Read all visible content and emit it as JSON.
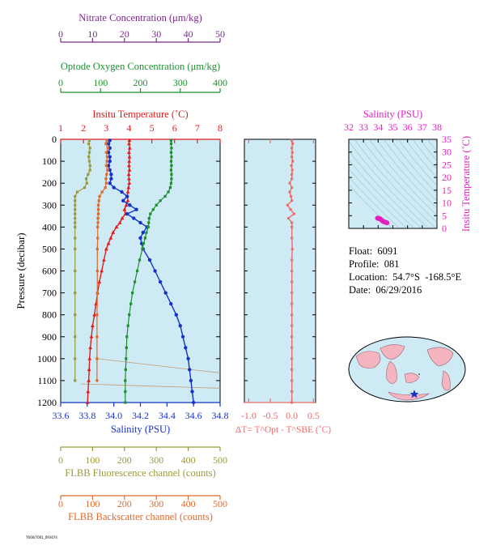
{
  "info": {
    "float": "Float:  6091",
    "profile": "Profile:  081",
    "location": "Location:  54.7°S  -168.5°E",
    "date": "Date:  06/29/2016"
  },
  "footer": "7600/7001_093674",
  "colors": {
    "temperature": "#e41a1c",
    "salinity": "#1533c8",
    "oxygen": "#1e8f2e",
    "nitrate": "#7a2a8a",
    "fluorescence": "#9a9a3a",
    "backscatter": "#e0692a",
    "delta_t": "#f06a6a",
    "ts_magenta": "#e020c0",
    "plot_bg": "#cdeaf5"
  },
  "chart_data": [
    {
      "type": "line",
      "name": "main-profile",
      "ylabel": "Pressure (decibar)",
      "y_ticks": [
        "0",
        "100",
        "200",
        "300",
        "400",
        "500",
        "600",
        "700",
        "800",
        "900",
        "1000",
        "1100",
        "1200"
      ],
      "ylim": [
        1200,
        0
      ],
      "axes": {
        "nitrate": {
          "title": "Nitrate Concentration (μm/kg)",
          "ticks": [
            "0",
            "10",
            "20",
            "30",
            "40",
            "50"
          ],
          "range": [
            0,
            50
          ]
        },
        "oxygen": {
          "title": "Optode Oxygen Concentration (μm/kg)",
          "ticks": [
            "0",
            "100",
            "200",
            "300",
            "400"
          ],
          "range": [
            0,
            400
          ]
        },
        "temperature": {
          "title": "Insitu Temperature (˚C)",
          "ticks": [
            "1",
            "2",
            "3",
            "4",
            "5",
            "6",
            "7",
            "8"
          ],
          "range": [
            1,
            8
          ]
        },
        "salinity": {
          "title": "Salinity (PSU)",
          "ticks": [
            "33.6",
            "33.8",
            "34.0",
            "34.2",
            "34.4",
            "34.6",
            "34.8"
          ],
          "range": [
            33.6,
            34.8
          ]
        },
        "fluorescence": {
          "title": "FLBB Fluorescence channel (counts)",
          "ticks": [
            "0",
            "100",
            "200",
            "300",
            "400",
            "500"
          ],
          "range": [
            0,
            500
          ]
        },
        "backscatter": {
          "title": "FLBB Backscatter channel (counts)",
          "ticks": [
            "0",
            "100",
            "200",
            "300",
            "400",
            "500"
          ],
          "range": [
            0,
            500
          ]
        }
      },
      "series": [
        {
          "key": "temperature",
          "p": [
            5,
            20,
            40,
            60,
            80,
            100,
            120,
            140,
            160,
            180,
            200,
            220,
            240,
            260,
            280,
            300,
            320,
            340,
            360,
            380,
            400,
            425,
            450,
            475,
            500,
            550,
            600,
            650,
            700,
            750,
            800,
            850,
            900,
            950,
            1000,
            1050,
            1100,
            1150,
            1200
          ],
          "v": [
            4.02,
            4.0,
            4.03,
            4.0,
            4.02,
            4.01,
            4.0,
            4.02,
            3.99,
            4.0,
            4.01,
            3.98,
            3.95,
            3.92,
            3.95,
            3.88,
            3.8,
            3.84,
            3.7,
            3.6,
            3.45,
            3.3,
            3.2,
            3.1,
            3.0,
            2.9,
            2.8,
            2.7,
            2.62,
            2.55,
            2.48,
            2.4,
            2.35,
            2.3,
            2.27,
            2.25,
            2.23,
            2.2,
            2.18
          ]
        },
        {
          "key": "salinity",
          "p": [
            5,
            20,
            40,
            60,
            80,
            100,
            120,
            140,
            160,
            180,
            200,
            220,
            240,
            260,
            280,
            300,
            320,
            340,
            360,
            380,
            400,
            425,
            450,
            475,
            500,
            550,
            600,
            650,
            700,
            750,
            800,
            850,
            900,
            950,
            1000,
            1050,
            1100,
            1150,
            1200
          ],
          "v": [
            33.97,
            33.96,
            33.97,
            33.96,
            33.97,
            33.97,
            33.96,
            33.97,
            33.98,
            33.98,
            33.97,
            34.0,
            34.06,
            34.1,
            34.07,
            34.12,
            34.17,
            34.1,
            34.15,
            34.2,
            34.25,
            34.22,
            34.2,
            34.21,
            34.22,
            34.27,
            34.31,
            34.35,
            34.39,
            34.43,
            34.47,
            34.5,
            34.52,
            34.54,
            34.56,
            34.57,
            34.58,
            34.59,
            34.6
          ]
        },
        {
          "key": "oxygen",
          "p": [
            5,
            20,
            40,
            60,
            80,
            100,
            120,
            140,
            160,
            180,
            200,
            220,
            240,
            260,
            280,
            300,
            320,
            340,
            360,
            380,
            400,
            425,
            450,
            475,
            500,
            550,
            600,
            650,
            700,
            750,
            800,
            850,
            900,
            950,
            1000,
            1050,
            1100,
            1150,
            1200
          ],
          "v": [
            277,
            277,
            278,
            277,
            278,
            277,
            278,
            277,
            278,
            278,
            277,
            275,
            270,
            262,
            250,
            240,
            232,
            225,
            222,
            221,
            220,
            215,
            212,
            208,
            205,
            198,
            192,
            186,
            180,
            176,
            172,
            169,
            166,
            165,
            164,
            163,
            162,
            162,
            162
          ]
        },
        {
          "key": "fluorescence",
          "p": [
            5,
            20,
            40,
            60,
            80,
            100,
            120,
            140,
            160,
            180,
            200,
            220,
            240,
            260,
            280,
            300,
            320,
            340,
            360,
            380,
            400,
            450,
            500,
            600,
            700,
            800,
            900,
            1000,
            1100
          ],
          "v": [
            90,
            88,
            92,
            90,
            88,
            90,
            92,
            92,
            86,
            80,
            82,
            75,
            52,
            45,
            45,
            45,
            45,
            45,
            45,
            45,
            45,
            45,
            45,
            45,
            45,
            45,
            45,
            45,
            45
          ]
        },
        {
          "key": "backscatter",
          "p": [
            5,
            20,
            40,
            60,
            80,
            100,
            120,
            140,
            160,
            180,
            200,
            220,
            240,
            260,
            280,
            300,
            320,
            340,
            360,
            380,
            400,
            450,
            500,
            600,
            700,
            800,
            900,
            1000,
            1100
          ],
          "v": [
            145,
            142,
            148,
            143,
            146,
            145,
            143,
            147,
            144,
            142,
            143,
            140,
            130,
            122,
            120,
            118,
            118,
            118,
            117,
            117,
            116,
            116,
            115,
            115,
            115,
            114,
            114,
            114,
            114
          ]
        }
      ]
    },
    {
      "type": "scatter",
      "name": "delta-t",
      "xlabel": "ΔT= T^Opt - T^SBE (˚C)",
      "x_ticks": [
        "-1.0",
        "-0.5",
        "0.0",
        "0.5"
      ],
      "xlim": [
        -1.1,
        0.55
      ],
      "ylim": [
        1200,
        0
      ],
      "p": [
        5,
        20,
        40,
        60,
        80,
        100,
        120,
        140,
        160,
        180,
        200,
        220,
        240,
        260,
        280,
        300,
        320,
        340,
        360,
        380,
        400,
        450,
        500,
        550,
        600,
        650,
        700,
        750,
        800,
        850,
        900,
        950,
        1000,
        1050,
        1100,
        1150,
        1200
      ],
      "v": [
        0.0,
        0.02,
        0.0,
        0.01,
        0.0,
        0.02,
        -0.01,
        0.01,
        0.0,
        0.0,
        -0.05,
        0.0,
        -0.05,
        -0.02,
        0.0,
        -0.1,
        -0.03,
        0.05,
        -0.08,
        0.0,
        0.0,
        0.0,
        0.01,
        0.0,
        0.0,
        0.0,
        0.0,
        0.0,
        0.0,
        0.0,
        0.0,
        0.0,
        0.0,
        0.0,
        0.0,
        0.0,
        0.0
      ]
    },
    {
      "type": "scatter",
      "name": "ts-diagram",
      "title": "Salinity (PSU)",
      "ylabel": "Insitu Temperature (˚C)",
      "x_ticks": [
        "32",
        "33",
        "34",
        "35",
        "36",
        "37",
        "38"
      ],
      "y_ticks": [
        "0",
        "5",
        "10",
        "15",
        "20",
        "25",
        "30",
        "35"
      ],
      "xlim": [
        32,
        38
      ],
      "ylim": [
        0,
        35
      ],
      "s": [
        33.96,
        33.97,
        33.98,
        34.0,
        34.05,
        34.1,
        34.12,
        34.15,
        34.2,
        34.25,
        34.3,
        34.35,
        34.4,
        34.45,
        34.5,
        34.55,
        34.6
      ],
      "t": [
        4.0,
        4.02,
        3.98,
        3.95,
        3.9,
        3.85,
        3.8,
        3.7,
        3.4,
        3.2,
        2.9,
        2.7,
        2.6,
        2.5,
        2.4,
        2.3,
        2.2
      ]
    }
  ]
}
